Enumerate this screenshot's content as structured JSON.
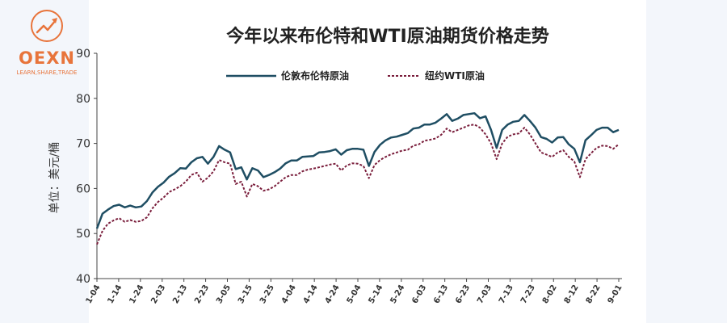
{
  "logo": {
    "name": "OEXN",
    "tagline": "LEARN,SHARE,TRADE",
    "color": "#e8743b"
  },
  "chart_data": {
    "type": "line",
    "title": "今年以来布伦特和WTI原油期货价格走势",
    "ylabel": "单位：美元/桶",
    "xlabel": "",
    "ylim": [
      40,
      90
    ],
    "yticks": [
      40,
      50,
      60,
      70,
      80,
      90
    ],
    "grid": false,
    "legend_position": "top",
    "x_tick_labels": [
      "1-04",
      "1-14",
      "1-24",
      "2-03",
      "2-13",
      "2-23",
      "3-05",
      "3-15",
      "3-25",
      "4-04",
      "4-14",
      "4-24",
      "5-04",
      "5-14",
      "5-24",
      "6-03",
      "6-13",
      "6-23",
      "7-03",
      "7-13",
      "7-23",
      "8-02",
      "8-12",
      "8-22",
      "9-01"
    ],
    "series": [
      {
        "name": "伦敦布伦特原油",
        "style": "solid",
        "color": "#1f4e63",
        "values": [
          51.1,
          54.4,
          55.3,
          56.1,
          56.4,
          55.8,
          56.2,
          55.8,
          56.0,
          57.2,
          59.1,
          60.4,
          61.3,
          62.6,
          63.4,
          64.5,
          64.4,
          65.8,
          66.7,
          67.0,
          65.5,
          67.0,
          69.4,
          68.6,
          68.0,
          64.3,
          64.7,
          62.0,
          64.5,
          64.0,
          62.5,
          63.0,
          63.6,
          64.4,
          65.6,
          66.2,
          66.2,
          67.0,
          67.1,
          67.2,
          68.0,
          68.1,
          68.3,
          68.7,
          67.5,
          68.5,
          68.8,
          68.8,
          68.6,
          65.0,
          68.1,
          69.7,
          70.7,
          71.3,
          71.5,
          71.9,
          72.3,
          73.3,
          73.5,
          74.2,
          74.2,
          74.6,
          75.5,
          76.5,
          75.0,
          75.5,
          76.3,
          76.5,
          76.7,
          75.6,
          76.0,
          73.0,
          69.0,
          73.0,
          74.2,
          74.8,
          75.0,
          76.3,
          75.0,
          73.5,
          71.4,
          71.0,
          70.2,
          71.3,
          71.4,
          69.8,
          68.8,
          65.8,
          70.7,
          71.8,
          73.0,
          73.5,
          73.5,
          72.5,
          73.0
        ]
      },
      {
        "name": "纽约WTI原油",
        "style": "dashed",
        "color": "#7a1e3c",
        "values": [
          47.6,
          50.6,
          52.2,
          52.9,
          53.4,
          52.6,
          53.0,
          52.6,
          52.8,
          53.6,
          55.6,
          57.0,
          58.0,
          59.2,
          59.8,
          60.5,
          61.5,
          63.0,
          63.5,
          61.5,
          62.4,
          63.8,
          66.3,
          65.8,
          65.5,
          61.0,
          61.5,
          58.2,
          61.0,
          60.5,
          59.5,
          59.8,
          60.5,
          61.5,
          62.5,
          63.0,
          63.0,
          63.8,
          64.2,
          64.4,
          64.7,
          65.0,
          65.3,
          65.5,
          64.0,
          65.1,
          65.6,
          65.5,
          65.0,
          62.3,
          65.2,
          66.3,
          67.0,
          67.6,
          68.0,
          68.4,
          68.6,
          69.5,
          69.8,
          70.6,
          70.8,
          71.1,
          71.9,
          73.3,
          72.5,
          73.0,
          73.5,
          74.0,
          74.2,
          73.5,
          72.0,
          70.0,
          66.5,
          70.0,
          71.5,
          72.0,
          72.2,
          73.5,
          72.0,
          70.0,
          68.0,
          67.5,
          67.0,
          68.0,
          68.5,
          67.0,
          66.0,
          62.5,
          66.5,
          67.8,
          69.0,
          69.5,
          69.4,
          68.8,
          69.8
        ]
      }
    ]
  }
}
